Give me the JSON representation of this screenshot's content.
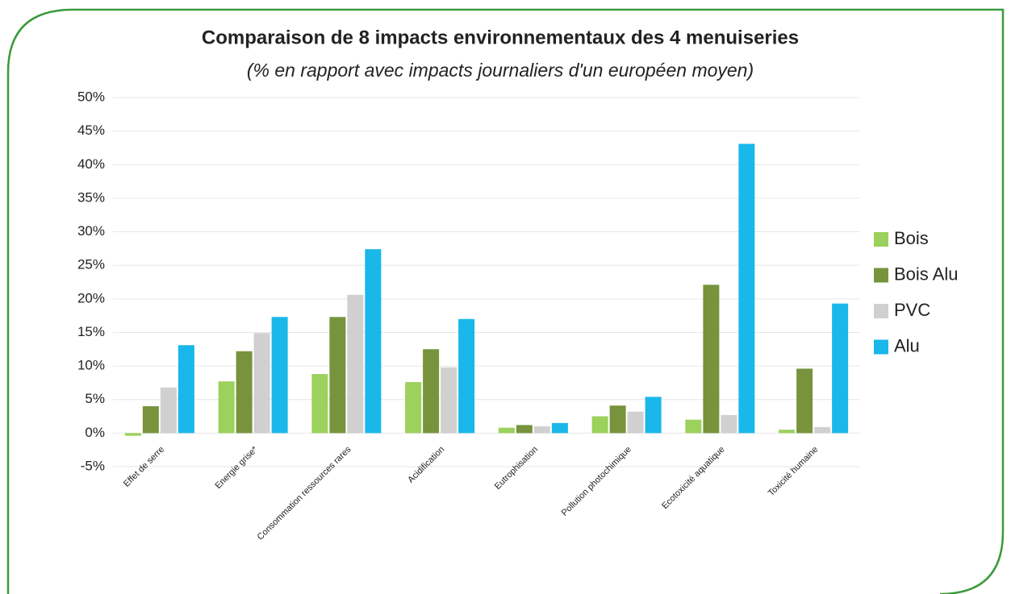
{
  "chart_data": {
    "type": "bar",
    "title": "Comparaison de 8 impacts environnementaux des 4 menuiseries",
    "subtitle": "(% en rapport avec impacts journaliers d'un européen moyen)",
    "categories": [
      "Effet de serre",
      "Energie grise*",
      "Consommation ressources rares",
      "Acidification",
      "Eutrophisation",
      "Pollution photochimique",
      "Ecotoxicité aquatique",
      "Toxicité humaine"
    ],
    "series": [
      {
        "name": "Bois",
        "color": "#9bd15c",
        "values": [
          -0.4,
          7.7,
          8.8,
          7.6,
          0.8,
          2.5,
          2.0,
          0.5
        ]
      },
      {
        "name": "Bois Alu",
        "color": "#77933c",
        "values": [
          4.0,
          12.2,
          17.3,
          12.5,
          1.2,
          4.1,
          22.1,
          9.6
        ]
      },
      {
        "name": "PVC",
        "color": "#d0d0d0",
        "values": [
          6.8,
          14.9,
          20.6,
          9.8,
          1.0,
          3.2,
          2.7,
          0.9
        ]
      },
      {
        "name": "Alu",
        "color": "#1ab7ea",
        "values": [
          13.1,
          17.3,
          27.4,
          17.0,
          1.5,
          5.4,
          43.1,
          19.3
        ]
      }
    ],
    "ylim": [
      -5,
      50
    ],
    "yticks": [
      {
        "value": -5,
        "label": "-5%"
      },
      {
        "value": 0,
        "label": "0%"
      },
      {
        "value": 5,
        "label": "5%"
      },
      {
        "value": 10,
        "label": "10%"
      },
      {
        "value": 15,
        "label": "15%"
      },
      {
        "value": 20,
        "label": "20%"
      },
      {
        "value": 25,
        "label": "25%"
      },
      {
        "value": 30,
        "label": "30%"
      },
      {
        "value": 35,
        "label": "35%"
      },
      {
        "value": 40,
        "label": "40%"
      },
      {
        "value": 45,
        "label": "45%"
      },
      {
        "value": 50,
        "label": "50%"
      }
    ],
    "grid": true,
    "legend": "right"
  }
}
